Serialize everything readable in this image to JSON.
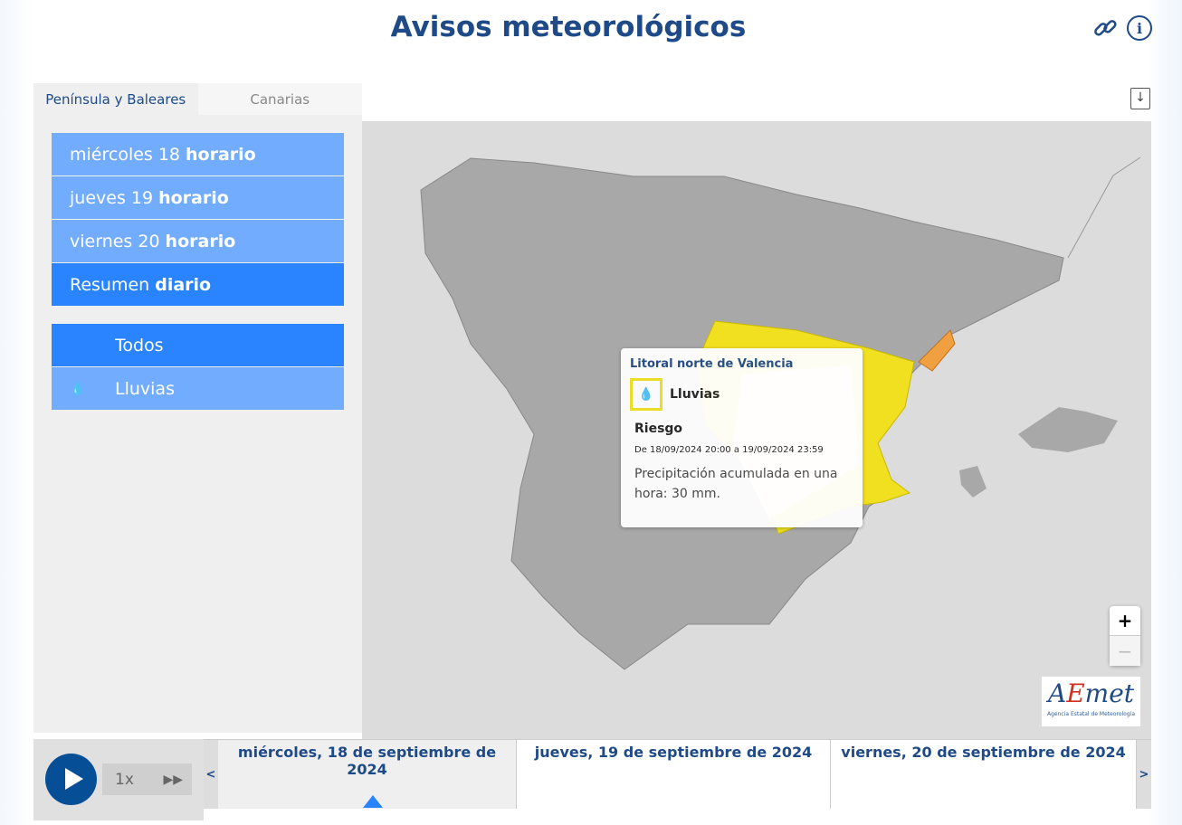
{
  "header": {
    "title": "Avisos meteorológicos",
    "link_icon": "link-icon",
    "info_icon": "info-icon"
  },
  "tabs": [
    {
      "label": "Península y Baleares",
      "active": true
    },
    {
      "label": "Canarias",
      "active": false
    }
  ],
  "days": [
    {
      "day": "miércoles 18",
      "mode": "horario"
    },
    {
      "day": "jueves 19",
      "mode": "horario"
    },
    {
      "day": "viernes 20",
      "mode": "horario"
    },
    {
      "day": "Resumen",
      "mode": "diario",
      "active": true
    }
  ],
  "filters": [
    {
      "label": "Todos",
      "active": true
    },
    {
      "label": "Lluvias",
      "icon": "rain-drops-icon"
    }
  ],
  "popup": {
    "zone": "Litoral norte de Valencia",
    "phenomenon": "Lluvias",
    "level": "Riesgo",
    "level_color": "#f0e020",
    "period": "De 18/09/2024 20:00 a 19/09/2024 23:59",
    "description": "Precipitación acumulada en una hora: 30 mm."
  },
  "map": {
    "zoom_in": "+",
    "zoom_out": "−",
    "logo_text": "AEmet",
    "logo_subtitle": "Agencia Estatal de Meteorología",
    "colors": {
      "yellow": "#f0e020",
      "orange": "#f0a040",
      "land": "#a8a8a8"
    }
  },
  "player": {
    "speed": "1x"
  },
  "timeline": {
    "prev": "<",
    "next": ">",
    "dates": [
      "miércoles, 18 de septiembre de 2024",
      "jueves, 19 de septiembre de 2024",
      "viernes, 20 de septiembre de 2024"
    ]
  }
}
